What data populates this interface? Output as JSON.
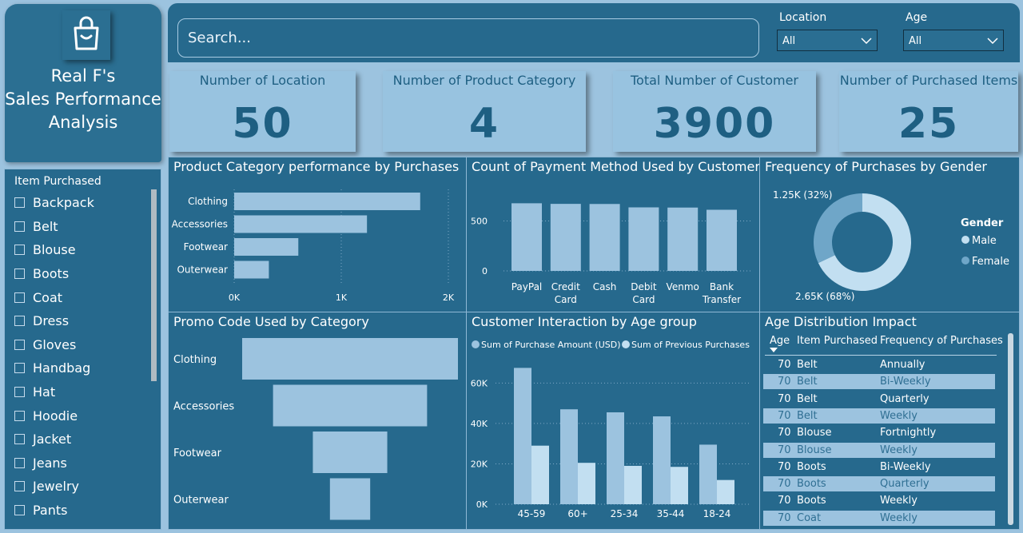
{
  "app": {
    "title_line1": "Real F's",
    "title_line2": "Sales Performance",
    "title_line3": "Analysis",
    "logo_icon": "shopping-bag-icon"
  },
  "search": {
    "placeholder": "Search..."
  },
  "filters": {
    "location": {
      "label": "Location",
      "value": "All"
    },
    "age": {
      "label": "Age",
      "value": "All"
    }
  },
  "kpis": [
    {
      "label": "Number of Location",
      "value": "50"
    },
    {
      "label": "Number of Product Category",
      "value": "4"
    },
    {
      "label": "Total Number of Customer",
      "value": "3900"
    },
    {
      "label": "Number of Purchased Items",
      "value": "25"
    }
  ],
  "slicer": {
    "title": "Item Purchased",
    "items": [
      "Backpack",
      "Belt",
      "Blouse",
      "Boots",
      "Coat",
      "Dress",
      "Gloves",
      "Handbag",
      "Hat",
      "Hoodie",
      "Jacket",
      "Jeans",
      "Jewelry",
      "Pants"
    ]
  },
  "colors": {
    "bg": "#9cc3df",
    "panel": "#26698d",
    "bar": "#9cc3df",
    "bar_light": "#c2dff1",
    "female": "#6fa6c8"
  },
  "chart_data": [
    {
      "type": "bar",
      "title": "Product Category performance by Purchases",
      "orientation": "horizontal",
      "categories": [
        "Clothing",
        "Accessories",
        "Footwear",
        "Outerwear"
      ],
      "values": [
        1737,
        1240,
        599,
        324
      ],
      "xlim": [
        0,
        2000
      ],
      "ticks": [
        "0K",
        "1K",
        "2K"
      ]
    },
    {
      "type": "bar",
      "title": "Count of Payment Method Used by Customer",
      "categories": [
        [
          "PayPal"
        ],
        [
          "Credit",
          "Card"
        ],
        [
          "Cash"
        ],
        [
          "Debit",
          "Card"
        ],
        [
          "Venmo"
        ],
        [
          "Bank",
          "Transfer"
        ]
      ],
      "values": [
        677,
        671,
        670,
        636,
        634,
        612
      ],
      "ylim": [
        0,
        800
      ],
      "ticks": [
        "0",
        "500"
      ]
    },
    {
      "type": "pie",
      "title": "Frequency of Purchases by Gender",
      "legend_title": "Gender",
      "slices": [
        {
          "name": "Male",
          "value": 2650,
          "label": "2.65K (68%)"
        },
        {
          "name": "Female",
          "value": 1250,
          "label": "1.25K (32%)"
        }
      ]
    },
    {
      "type": "bar",
      "title": "Promo Code Used by Category",
      "orientation": "funnel",
      "categories": [
        "Clothing",
        "Accessories",
        "Footwear",
        "Outerwear"
      ],
      "values": [
        1737,
        1240,
        599,
        324
      ]
    },
    {
      "type": "bar",
      "title": "Customer Interaction by Age group",
      "categories": [
        "45-59",
        "60+",
        "25-34",
        "35-44",
        "18-24"
      ],
      "series": [
        {
          "name": "Sum of Purchase Amount (USD)",
          "values": [
            67500,
            47000,
            45500,
            43500,
            29500
          ]
        },
        {
          "name": "Sum of Previous Purchases",
          "values": [
            29000,
            20500,
            19000,
            18500,
            12000
          ]
        }
      ],
      "ylim": [
        0,
        72000
      ],
      "ticks": [
        "0K",
        "20K",
        "40K",
        "60K"
      ]
    }
  ],
  "age_table": {
    "title": "Age Distribution Impact",
    "columns": [
      "Age",
      "Item Purchased",
      "Frequency of Purchases"
    ],
    "rows": [
      [
        "70",
        "Belt",
        "Annually"
      ],
      [
        "70",
        "Belt",
        "Bi-Weekly"
      ],
      [
        "70",
        "Belt",
        "Quarterly"
      ],
      [
        "70",
        "Belt",
        "Weekly"
      ],
      [
        "70",
        "Blouse",
        "Fortnightly"
      ],
      [
        "70",
        "Blouse",
        "Weekly"
      ],
      [
        "70",
        "Boots",
        "Bi-Weekly"
      ],
      [
        "70",
        "Boots",
        "Quarterly"
      ],
      [
        "70",
        "Boots",
        "Weekly"
      ],
      [
        "70",
        "Coat",
        "Weekly"
      ]
    ]
  }
}
